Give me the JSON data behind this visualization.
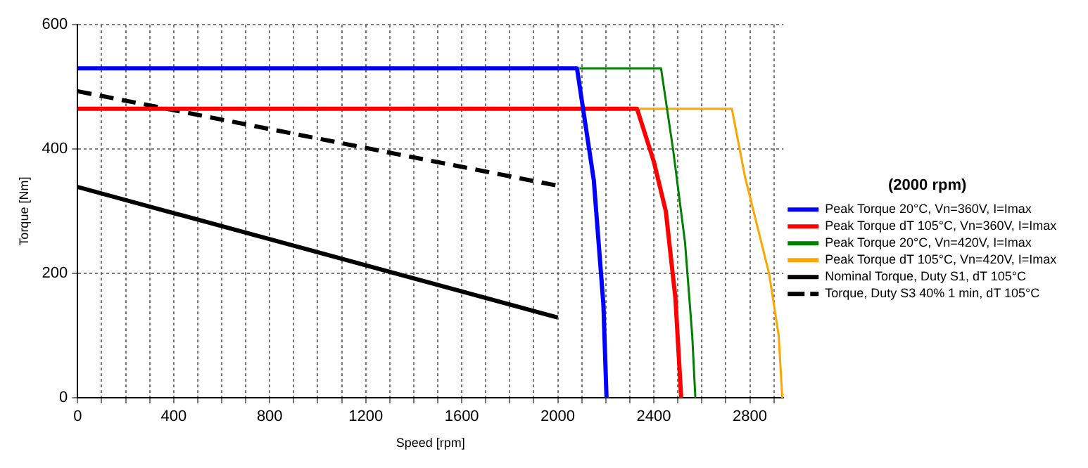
{
  "chart_data": {
    "type": "line",
    "xlabel": "Speed [rpm]",
    "ylabel": "Torque [Nm]",
    "legend_title": "(2000 rpm)",
    "legend": "right",
    "grid": true,
    "marker": "none",
    "xlim": [
      0,
      2940
    ],
    "ylim": [
      0,
      600
    ],
    "xticks": [
      0,
      {
        "value": 100,
        "label": null
      },
      {
        "value": 200,
        "label": null
      },
      {
        "value": 300,
        "label": null
      },
      400,
      {
        "value": 500,
        "label": null
      },
      {
        "value": 600,
        "label": null
      },
      {
        "value": 700,
        "label": null
      },
      800,
      {
        "value": 900,
        "label": null
      },
      {
        "value": 1000,
        "label": null
      },
      {
        "value": 1100,
        "label": null
      },
      1200,
      {
        "value": 1300,
        "label": null
      },
      {
        "value": 1400,
        "label": null
      },
      {
        "value": 1500,
        "label": null
      },
      1600,
      {
        "value": 1700,
        "label": null
      },
      {
        "value": 1800,
        "label": null
      },
      {
        "value": 1900,
        "label": null
      },
      2000,
      {
        "value": 2100,
        "label": null
      },
      {
        "value": 2200,
        "label": null
      },
      {
        "value": 2300,
        "label": null
      },
      2400,
      {
        "value": 2500,
        "label": null
      },
      {
        "value": 2600,
        "label": null
      },
      {
        "value": 2700,
        "label": null
      },
      2800,
      {
        "value": 2900,
        "label": null
      }
    ],
    "yticks": [
      0,
      200,
      400,
      600
    ],
    "series": [
      {
        "name": "Peak Torque 20°C, Vn=360V, I=Imax",
        "color": "#0000ff",
        "x": [
          0,
          2080,
          2150,
          2190,
          2203
        ],
        "values": [
          530,
          530,
          350,
          150,
          0
        ]
      },
      {
        "name": "Peak Torque dT 105°C, Vn=360V, I=Imax",
        "color": "#ff0000",
        "x": [
          0,
          2330,
          2400,
          2450,
          2490,
          2514
        ],
        "values": [
          465,
          465,
          380,
          300,
          160,
          0
        ]
      },
      {
        "name": "Peak Torque 20°C, Vn=420V, I=Imax",
        "color": "#008000",
        "x": [
          2090,
          2430,
          2480,
          2530,
          2560,
          2573
        ],
        "values": [
          530,
          530,
          400,
          250,
          100,
          0
        ]
      },
      {
        "name": "Peak Torque dT 105°C, Vn=420V, I=Imax",
        "color": "#ffa500",
        "x": [
          2340,
          2725,
          2780,
          2880,
          2920,
          2935
        ],
        "values": [
          465,
          465,
          355,
          200,
          100,
          0
        ]
      },
      {
        "name": "Nominal Torque, Duty S1, dT 105°C",
        "color": "#000000",
        "x": [
          0,
          2000
        ],
        "values": [
          339,
          129
        ]
      },
      {
        "name": "Torque, Duty S3 40% 1 min, dT 105°C",
        "color": "#000000",
        "line_style": "dashed",
        "x": [
          0,
          2000
        ],
        "values": [
          493,
          341
        ]
      }
    ]
  }
}
